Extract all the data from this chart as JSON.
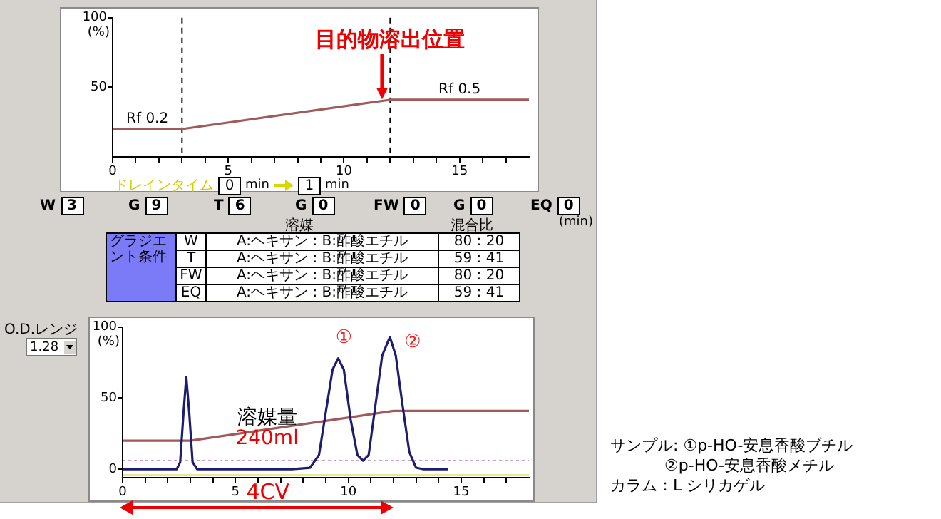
{
  "chart_data": [
    {
      "type": "line",
      "x": [
        0,
        3,
        12,
        18
      ],
      "series": [
        {
          "color": "#a05a5a",
          "values": [
            20,
            20,
            41,
            41
          ]
        }
      ],
      "xlim": [
        0,
        18
      ],
      "xticks": [
        0,
        {
          "value": 1,
          "label": null
        },
        {
          "value": 2,
          "label": null
        },
        {
          "value": 3,
          "label": null
        },
        {
          "value": 4,
          "label": null
        },
        5,
        {
          "value": 6,
          "label": null
        },
        {
          "value": 7,
          "label": null
        },
        {
          "value": 8,
          "label": null
        },
        {
          "value": 9,
          "label": null
        },
        10,
        {
          "value": 11,
          "label": null
        },
        {
          "value": 12,
          "label": null
        },
        {
          "value": 13,
          "label": null
        },
        {
          "value": 14,
          "label": null
        },
        15,
        {
          "value": 16,
          "label": null
        },
        {
          "value": 17,
          "label": null
        }
      ],
      "ylim": [
        0,
        100
      ],
      "yticks": [
        50,
        100
      ],
      "ylabel": "(%)",
      "ref_lines": [
        {
          "axis": "x",
          "value": 3,
          "color": "#000000",
          "line_style": "dashed"
        },
        {
          "axis": "x",
          "value": 12,
          "color": "#000000",
          "line_style": "dashed"
        }
      ],
      "annotations": [
        {
          "text": "Rf 0.2",
          "x": 1.5,
          "y": 20
        },
        {
          "text": "Rf 0.5",
          "x": 15,
          "y": 41
        },
        {
          "text": "目的物溶出位置",
          "x": 12,
          "y": 41
        }
      ],
      "marker": "none",
      "line_style": "solid",
      "grid": false,
      "legend": false
    },
    {
      "type": "other",
      "annotations": [
        "ドレインタイム",
        "0",
        "min",
        "1",
        "min",
        "W",
        "3",
        "G",
        "9",
        "T",
        "6",
        "G",
        "0",
        "FW",
        "0",
        "G",
        "0",
        "EQ",
        "0",
        "(min)",
        "溶媒",
        "混合比",
        "グラジエント条件",
        "W",
        "A:ヘキサン : B:酢酸エチル",
        "80 : 20",
        "T",
        "A:ヘキサン : B:酢酸エチル",
        "59 : 41",
        "FW",
        "A:ヘキサン : B:酢酸エチル",
        "80 : 20",
        "EQ",
        "A:ヘキサン : B:酢酸エチル",
        "59 : 41",
        "O.D.レンジ",
        "1.28",
        "サンプル: ①p-HO-安息香酸ブチル",
        "②p-HO-安息香酸メチル",
        "カラム：L シリカゲル"
      ]
    },
    {
      "type": "line",
      "series": [
        {
          "color": "#1c1c70",
          "x": [
            0,
            2.4,
            2.55,
            2.7,
            2.82,
            2.95,
            3.1,
            3.3,
            7.5,
            8.3,
            8.7,
            9.0,
            9.3,
            9.55,
            9.8,
            10.1,
            10.4,
            10.65,
            10.9,
            11.2,
            11.5,
            11.84,
            12.1,
            12.4,
            12.7,
            13.0,
            13.3,
            14.4
          ],
          "values": [
            0,
            0,
            5,
            40,
            65,
            40,
            5,
            0,
            0,
            1,
            10,
            40,
            70,
            78,
            70,
            35,
            10,
            6,
            10,
            45,
            80,
            93,
            80,
            45,
            12,
            1,
            0,
            0
          ]
        },
        {
          "color": "#a05a5a",
          "x": [
            0,
            3,
            12,
            18
          ],
          "values": [
            20,
            20,
            41,
            41
          ]
        }
      ],
      "xlim": [
        0,
        18
      ],
      "xticks": [
        0,
        {
          "value": 1,
          "label": null
        },
        {
          "value": 2,
          "label": null
        },
        {
          "value": 3,
          "label": null
        },
        {
          "value": 4,
          "label": null
        },
        5,
        {
          "value": 6,
          "label": null
        },
        {
          "value": 7,
          "label": null
        },
        {
          "value": 8,
          "label": null
        },
        {
          "value": 9,
          "label": null
        },
        10,
        {
          "value": 11,
          "label": null
        },
        {
          "value": 12,
          "label": null
        },
        {
          "value": 13,
          "label": null
        },
        {
          "value": 14,
          "label": null
        },
        15,
        {
          "value": 16,
          "label": null
        },
        {
          "value": 17,
          "label": null
        }
      ],
      "ylim": [
        -6,
        100
      ],
      "yticks": [
        0,
        50,
        100
      ],
      "ylabel": "(%)",
      "ref_lines": [
        {
          "axis": "y",
          "value": 6,
          "color": "#c8a0c8",
          "line_style": "dotted"
        },
        {
          "axis": "y",
          "value": -4,
          "color": "#e8e890",
          "line_style": "solid"
        }
      ],
      "annotations": [
        {
          "text": "①",
          "x": 9.55,
          "y": 78
        },
        {
          "text": "②",
          "x": 11.84,
          "y": 93
        },
        "溶媒量",
        "240ml",
        "4CV"
      ],
      "marker": "none",
      "line_style": "solid",
      "grid": false,
      "legend": false
    }
  ]
}
